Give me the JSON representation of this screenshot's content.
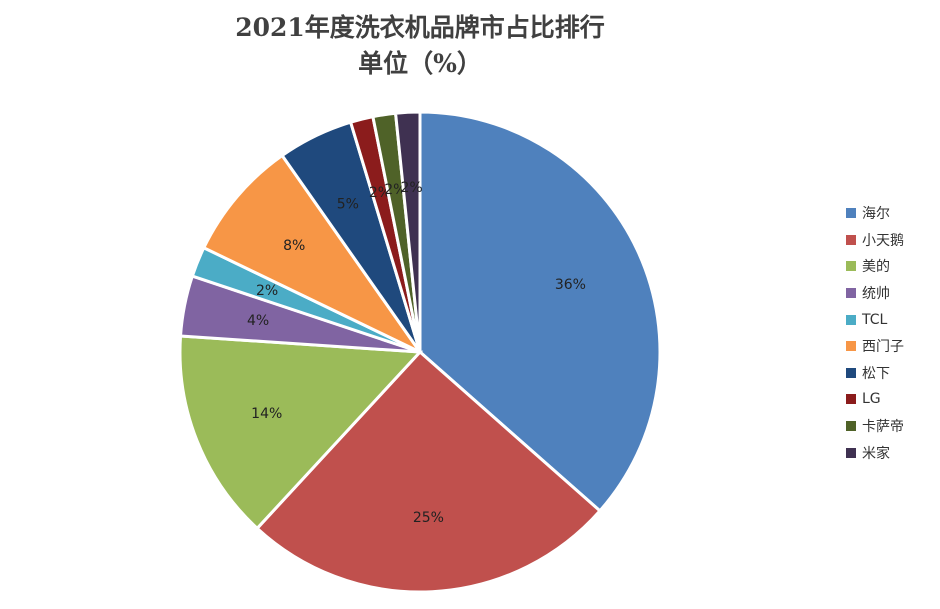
{
  "title": "2021年度洗衣机品牌市占比排行",
  "subtitle": "单位（%）",
  "chart_data": {
    "type": "pie",
    "title": "2021年度洗衣机品牌市占比排行",
    "subtitle": "单位（%）",
    "legend_position": "right",
    "slices": [
      {
        "name": "海尔",
        "value": 36,
        "label": "36%",
        "color": "#4f81bd"
      },
      {
        "name": "小天鹅",
        "value": 25,
        "label": "25%",
        "color": "#c0504d"
      },
      {
        "name": "美的",
        "value": 14,
        "label": "14%",
        "color": "#9bbb59"
      },
      {
        "name": "统帅",
        "value": 4,
        "label": "4%",
        "color": "#8064a2"
      },
      {
        "name": "TCL",
        "value": 2,
        "label": "2%",
        "color": "#4bacc6"
      },
      {
        "name": "西门子",
        "value": 8,
        "label": "8%",
        "color": "#f79646"
      },
      {
        "name": "松下",
        "value": 5,
        "label": "5%",
        "color": "#1f497d"
      },
      {
        "name": "LG",
        "value": 1.5,
        "label": "2%",
        "color": "#8b1c1c"
      },
      {
        "name": "卡萨帝",
        "value": 1.5,
        "label": "2%",
        "color": "#4f6228"
      },
      {
        "name": "米家",
        "value": 1.6,
        "label": "2%",
        "color": "#3f3151"
      }
    ]
  }
}
